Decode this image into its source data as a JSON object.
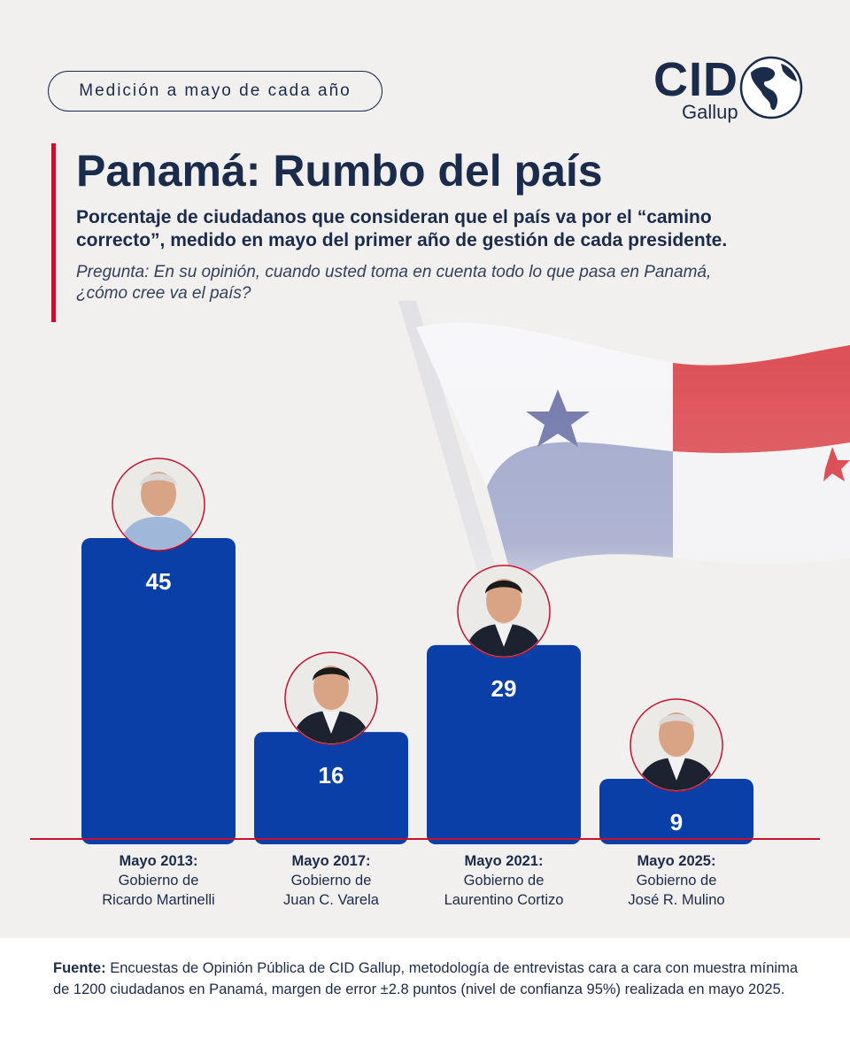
{
  "header": {
    "pill_text": "Medición a mayo de cada año",
    "logo_main": "CID",
    "logo_sub": "Gallup"
  },
  "title": "Panamá: Rumbo del país",
  "subtitle": "Porcentaje de ciudadanos que consideran que el país va por el “camino correcto”, medido en mayo del primer año de gestión de cada presidente.",
  "question": "Pregunta: En su opinión, cuando usted toma en cuenta todo lo que pasa en Panamá, ¿cómo cree va el país?",
  "footer": {
    "source_label": "Fuente:",
    "source_text": "Encuestas de Opinión Pública de CID Gallup, metodología de entrevistas cara a cara con muestra mínima de 1200 ciudadanos en Panamá, margen de error ±2.8 puntos (nivel de confianza 95%) realizada en mayo 2025."
  },
  "colors": {
    "bar": "#0b3fa8",
    "accent_red": "#c8102e",
    "text_dark": "#1b2b4b"
  },
  "chart_data": {
    "type": "bar",
    "categories": [
      "Mayo 2013:",
      "Mayo 2017:",
      "Mayo 2021:",
      "Mayo 2025:"
    ],
    "category_lines": [
      [
        "Gobierno de",
        "Ricardo Martinelli"
      ],
      [
        "Gobierno de",
        "Juan C. Varela"
      ],
      [
        "Gobierno de",
        "Laurentino Cortizo"
      ],
      [
        "Gobierno de",
        "José R. Mulino"
      ]
    ],
    "values": [
      45,
      16,
      29,
      9
    ],
    "ylim": [
      0,
      50
    ],
    "grid": false,
    "data_labels": true,
    "markers": [
      "president-portrait-icon",
      "president-portrait-icon",
      "president-portrait-icon",
      "president-portrait-icon"
    ]
  }
}
